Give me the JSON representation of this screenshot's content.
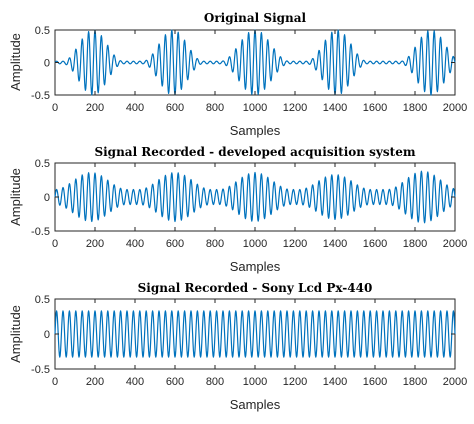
{
  "figure": {
    "line_color": "#0072BD",
    "axes_color": "#262626"
  },
  "chart_data": [
    {
      "type": "line",
      "title": "Original Signal",
      "xlabel": "Samples",
      "ylabel": "Amplitude",
      "xlim": [
        0,
        2000
      ],
      "ylim": [
        -0.5,
        0.5
      ],
      "xticks": [
        0,
        200,
        400,
        600,
        800,
        1000,
        1200,
        1400,
        1600,
        1800,
        2000
      ],
      "yticks": [
        -0.5,
        0,
        0.5
      ],
      "xtick_labels": [
        "0",
        "200",
        "400",
        "600",
        "800",
        "1000",
        "1200",
        "1400",
        "1600",
        "1800",
        "2000"
      ],
      "ytick_labels": [
        "-0.5",
        "0",
        "0.5"
      ],
      "grid": false,
      "series": [
        {
          "signal": "amplitude-modulated sinusoid",
          "carrier_period_samples": 32,
          "envelope_bursts": [
            {
              "center": 190,
              "half_width": 150,
              "peak": 0.5
            },
            {
              "center": 590,
              "half_width": 150,
              "peak": 0.5
            },
            {
              "center": 1000,
              "half_width": 170,
              "peak": 0.5
            },
            {
              "center": 1410,
              "half_width": 150,
              "peak": 0.5
            },
            {
              "center": 1880,
              "half_width": 150,
              "peak": 0.5
            }
          ],
          "envelope_floor": 0.02
        }
      ]
    },
    {
      "type": "line",
      "title": "Signal Recorded - developed acquisition system",
      "xlabel": "Samples",
      "ylabel": "Amplitude",
      "xlim": [
        0,
        2000
      ],
      "ylim": [
        -0.5,
        0.5
      ],
      "xticks": [
        0,
        200,
        400,
        600,
        800,
        1000,
        1200,
        1400,
        1600,
        1800,
        2000
      ],
      "yticks": [
        -0.5,
        0,
        0.5
      ],
      "xtick_labels": [
        "0",
        "200",
        "400",
        "600",
        "800",
        "1000",
        "1200",
        "1400",
        "1600",
        "1800",
        "2000"
      ],
      "ytick_labels": [
        "-0.5",
        "0",
        "0.5"
      ],
      "grid": false,
      "series": [
        {
          "signal": "amplitude-modulated sinusoid",
          "carrier_period_samples": 32,
          "envelope_bursts": [
            {
              "center": 180,
              "half_width": 180,
              "peak": 0.36
            },
            {
              "center": 600,
              "half_width": 180,
              "peak": 0.36
            },
            {
              "center": 1000,
              "half_width": 180,
              "peak": 0.36
            },
            {
              "center": 1400,
              "half_width": 180,
              "peak": 0.33
            },
            {
              "center": 1840,
              "half_width": 180,
              "peak": 0.38
            }
          ],
          "envelope_floor": 0.11
        }
      ]
    },
    {
      "type": "line",
      "title": "Signal Recorded - Sony Lcd Px-440",
      "xlabel": "Samples",
      "ylabel": "Amplitude",
      "xlim": [
        0,
        2000
      ],
      "ylim": [
        -0.5,
        0.5
      ],
      "xticks": [
        0,
        200,
        400,
        600,
        800,
        1000,
        1200,
        1400,
        1600,
        1800,
        2000
      ],
      "yticks": [
        -0.5,
        0,
        0.5
      ],
      "xtick_labels": [
        "0",
        "200",
        "400",
        "600",
        "800",
        "1000",
        "1200",
        "1400",
        "1600",
        "1800",
        "2000"
      ],
      "ytick_labels": [
        "-0.5",
        "0",
        "0.5"
      ],
      "grid": false,
      "series": [
        {
          "signal": "amplitude-modulated sinusoid",
          "carrier_period_samples": 32,
          "envelope_bursts": [
            {
              "center": 190,
              "half_width": 200,
              "peak": 0.13
            },
            {
              "center": 590,
              "half_width": 200,
              "peak": 0.13
            },
            {
              "center": 1000,
              "half_width": 200,
              "peak": 0.13
            },
            {
              "center": 1410,
              "half_width": 200,
              "peak": 0.13
            },
            {
              "center": 1870,
              "half_width": 200,
              "peak": 0.13
            }
          ],
          "envelope_floor": 0.33
        }
      ]
    }
  ]
}
